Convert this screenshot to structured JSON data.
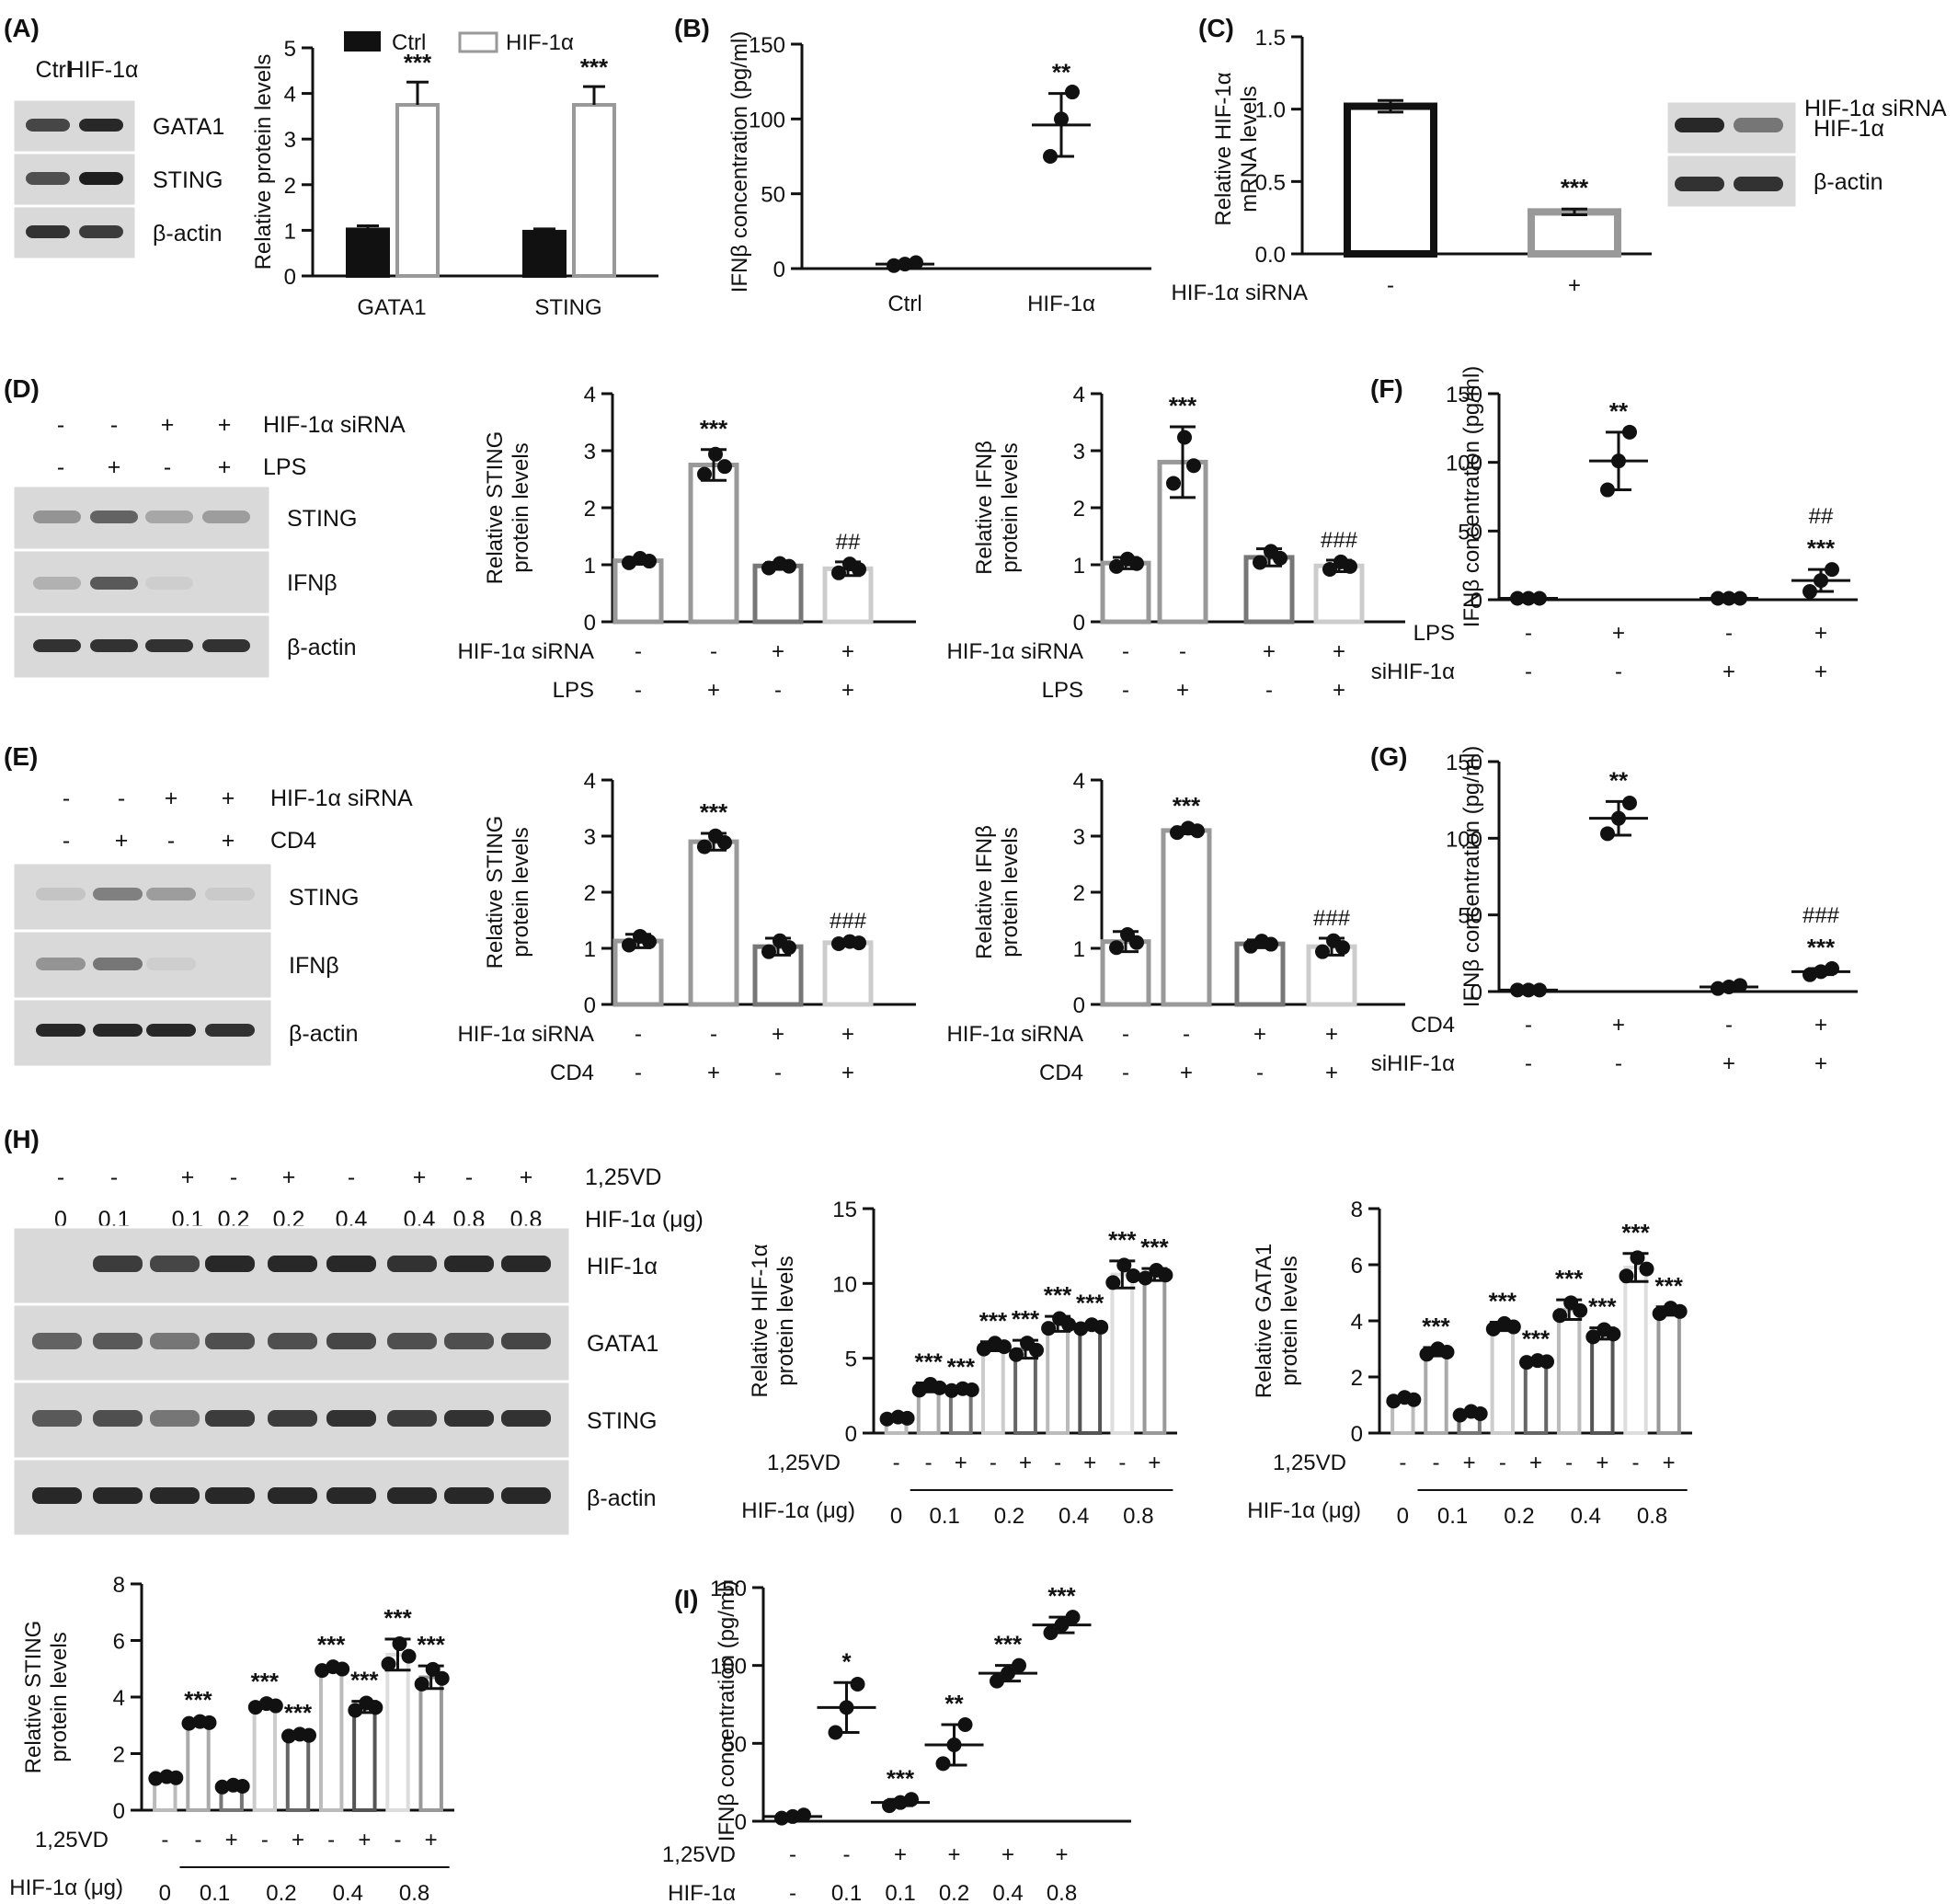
{
  "panels": [
    {
      "id": "A",
      "label": "(A)"
    },
    {
      "id": "B",
      "label": "(B)"
    },
    {
      "id": "C",
      "label": "(C)"
    },
    {
      "id": "D",
      "label": "(D)"
    },
    {
      "id": "E",
      "label": "(E)"
    },
    {
      "id": "F",
      "label": "(F)"
    },
    {
      "id": "G",
      "label": "(G)"
    },
    {
      "id": "H",
      "label": "(H)"
    },
    {
      "id": "I",
      "label": "(I)"
    }
  ],
  "blots": {
    "A": {
      "lanes": [
        "Ctrl",
        "HIF-1α"
      ],
      "bands": [
        "GATA1",
        "STING",
        "β-actin"
      ]
    },
    "C": {
      "lanes": [
        "-",
        "+"
      ],
      "treatment": "HIF-1α siRNA",
      "bands": [
        "HIF-1α",
        "β-actin"
      ]
    },
    "D": {
      "rows": [
        {
          "label": "HIF-1α siRNA",
          "values": [
            "-",
            "-",
            "+",
            "+"
          ]
        },
        {
          "label": "LPS",
          "values": [
            "-",
            "+",
            "-",
            "+"
          ]
        }
      ],
      "bands": [
        "STING",
        "IFNβ",
        "β-actin"
      ]
    },
    "E": {
      "rows": [
        {
          "label": "HIF-1α siRNA",
          "values": [
            "-",
            "-",
            "+",
            "+"
          ]
        },
        {
          "label": "CD4",
          "values": [
            "-",
            "+",
            "-",
            "+"
          ]
        }
      ],
      "bands": [
        "STING",
        "IFNβ",
        "β-actin"
      ]
    },
    "H": {
      "rows": [
        {
          "label": "1,25VD",
          "values": [
            "-",
            "-",
            "+",
            "-",
            "+",
            "-",
            "+",
            "-",
            "+"
          ]
        },
        {
          "label": "HIF-1α (μg)",
          "values": [
            "0",
            "0.1",
            "0.1",
            "0.2",
            "0.2",
            "0.4",
            "0.4",
            "0.8",
            "0.8"
          ]
        }
      ],
      "bands": [
        "HIF-1α",
        "GATA1",
        "STING",
        "β-actin"
      ]
    }
  },
  "chart_data": [
    {
      "panel": "A",
      "type": "bar",
      "categories": [
        "GATA1",
        "STING"
      ],
      "series": [
        {
          "name": "Ctrl",
          "values": [
            1.02,
            0.97
          ],
          "errors": [
            0.08,
            0.06
          ],
          "color": "#111111"
        },
        {
          "name": "HIF-1α",
          "values": [
            3.75,
            3.75
          ],
          "errors": [
            0.5,
            0.4
          ],
          "color": "#ffffff"
        }
      ],
      "ylabel": "Relative protein levels",
      "ylim": [
        0,
        5
      ],
      "yticks": [
        0,
        1,
        2,
        3,
        4,
        5
      ],
      "significance": [
        "***",
        "***"
      ],
      "legend": "top"
    },
    {
      "panel": "B",
      "type": "scatter",
      "categories": [
        "Ctrl",
        "HIF-1α"
      ],
      "means": [
        3,
        96
      ],
      "sd": [
        2,
        21
      ],
      "points": [
        [
          2,
          3,
          4
        ],
        [
          75,
          100,
          118
        ]
      ],
      "ylabel": "IFNβ concentration (pg/ml)",
      "ylim": [
        0,
        150
      ],
      "yticks": [
        0,
        50,
        100,
        150
      ],
      "significance": [
        "",
        "**"
      ]
    },
    {
      "panel": "C",
      "type": "bar",
      "categories": [
        "-",
        "+"
      ],
      "values": [
        1.02,
        0.29
      ],
      "errors": [
        0.04,
        0.02
      ],
      "xlabel": "HIF-1α siRNA",
      "ylabel": "Relative HIF-1α mRNA levels",
      "ylim": [
        0,
        1.5
      ],
      "yticks": [
        "0.0",
        "0.5",
        "1.0",
        "1.5"
      ],
      "significance": [
        "",
        "***"
      ]
    },
    {
      "panel": "D1",
      "type": "bar",
      "rows": [
        {
          "label": "HIF-1α siRNA",
          "values": [
            "-",
            "-",
            "+",
            "+"
          ]
        },
        {
          "label": "LPS",
          "values": [
            "-",
            "+",
            "-",
            "+"
          ]
        }
      ],
      "values": [
        1.07,
        2.75,
        0.98,
        0.93
      ],
      "errors": [
        0.06,
        0.27,
        0.06,
        0.12
      ],
      "ylabel": "Relative STING protein levels",
      "ylim": [
        0,
        4
      ],
      "yticks": [
        0,
        1,
        2,
        3,
        4
      ],
      "significance": [
        "",
        "***",
        "",
        "##"
      ]
    },
    {
      "panel": "D2",
      "type": "bar",
      "rows": [
        {
          "label": "HIF-1α siRNA",
          "values": [
            "-",
            "-",
            "+",
            "+"
          ]
        },
        {
          "label": "LPS",
          "values": [
            "-",
            "+",
            "-",
            "+"
          ]
        }
      ],
      "values": [
        1.03,
        2.8,
        1.13,
        0.98
      ],
      "errors": [
        0.1,
        0.62,
        0.15,
        0.1
      ],
      "ylabel": "Relative IFNβ protein levels",
      "ylim": [
        0,
        4
      ],
      "yticks": [
        0,
        1,
        2,
        3,
        4
      ],
      "significance": [
        "",
        "***",
        "",
        "###"
      ]
    },
    {
      "panel": "E1",
      "type": "bar",
      "rows": [
        {
          "label": "HIF-1α siRNA",
          "values": [
            "-",
            "-",
            "+",
            "+"
          ]
        },
        {
          "label": "CD4",
          "values": [
            "-",
            "+",
            "-",
            "+"
          ]
        }
      ],
      "values": [
        1.13,
        2.9,
        1.03,
        1.1
      ],
      "errors": [
        0.12,
        0.15,
        0.15,
        0.03
      ],
      "ylabel": "Relative STING protein levels",
      "ylim": [
        0,
        4
      ],
      "yticks": [
        0,
        1,
        2,
        3,
        4
      ],
      "significance": [
        "",
        "***",
        "",
        "###"
      ]
    },
    {
      "panel": "E2",
      "type": "bar",
      "rows": [
        {
          "label": "HIF-1α siRNA",
          "values": [
            "-",
            "-",
            "+",
            "+"
          ]
        },
        {
          "label": "CD4",
          "values": [
            "-",
            "+",
            "-",
            "+"
          ]
        }
      ],
      "values": [
        1.12,
        3.1,
        1.08,
        1.03
      ],
      "errors": [
        0.18,
        0.06,
        0.07,
        0.15
      ],
      "ylabel": "Relative IFNβ protein levels",
      "ylim": [
        0,
        4
      ],
      "yticks": [
        0,
        1,
        2,
        3,
        4
      ],
      "significance": [
        "",
        "***",
        "",
        "###"
      ]
    },
    {
      "panel": "F",
      "type": "scatter",
      "rows": [
        {
          "label": "LPS",
          "values": [
            "-",
            "+",
            "-",
            "+"
          ]
        },
        {
          "label": "siHIF-1α",
          "values": [
            "-",
            "-",
            "+",
            "+"
          ]
        }
      ],
      "means": [
        1,
        101,
        1,
        14
      ],
      "sd": [
        0.5,
        21,
        0.5,
        8
      ],
      "points": [
        [
          1,
          1,
          1
        ],
        [
          80,
          101,
          122
        ],
        [
          1,
          1,
          1
        ],
        [
          6,
          14,
          22
        ]
      ],
      "ylabel": "IFNβ concentration (pg/ml)",
      "ylim": [
        0,
        150
      ],
      "yticks": [
        0,
        50,
        100,
        150
      ],
      "significance": [
        "",
        "**",
        "",
        "***"
      ],
      "significance2": [
        "",
        "",
        "",
        "##"
      ]
    },
    {
      "panel": "G",
      "type": "scatter",
      "rows": [
        {
          "label": "CD4",
          "values": [
            "-",
            "+",
            "-",
            "+"
          ]
        },
        {
          "label": "siHIF-1α",
          "values": [
            "-",
            "-",
            "+",
            "+"
          ]
        }
      ],
      "means": [
        1,
        113,
        3,
        13
      ],
      "sd": [
        0.5,
        11,
        1,
        2
      ],
      "points": [
        [
          1,
          1,
          1
        ],
        [
          103,
          113,
          123
        ],
        [
          2,
          3,
          4
        ],
        [
          11,
          13,
          15
        ]
      ],
      "ylabel": "IFNβ concentration (pg/ml)",
      "ylim": [
        0,
        150
      ],
      "yticks": [
        0,
        50,
        100,
        150
      ],
      "significance": [
        "",
        "**",
        "",
        "***"
      ],
      "significance2": [
        "",
        "",
        "",
        "###"
      ]
    },
    {
      "panel": "H1",
      "type": "bar",
      "vd": [
        "-",
        "-",
        "+",
        "-",
        "+",
        "-",
        "+",
        "-",
        "+"
      ],
      "groups": [
        "0",
        "0.1",
        "0.2",
        "0.4",
        "0.8"
      ],
      "group_row_label": "HIF-1α (μg)",
      "values": [
        1.0,
        3.05,
        2.9,
        5.8,
        5.6,
        7.3,
        7.1,
        10.6,
        10.6
      ],
      "errors": [
        0.1,
        0.3,
        0.1,
        0.3,
        0.6,
        0.5,
        0.2,
        0.9,
        0.4
      ],
      "ylabel": "Relative HIF-1α protein levels",
      "ylim": [
        0,
        15
      ],
      "yticks": [
        0,
        5,
        10,
        15
      ],
      "significance": [
        "",
        "***",
        "***",
        "***",
        "***",
        "***",
        "***",
        "***",
        "***"
      ]
    },
    {
      "panel": "H2",
      "type": "bar",
      "vd": [
        "-",
        "-",
        "+",
        "-",
        "+",
        "-",
        "+",
        "-",
        "+"
      ],
      "groups": [
        "0",
        "0.1",
        "0.2",
        "0.4",
        "0.8"
      ],
      "group_row_label": "HIF-1α (μg)",
      "values": [
        1.2,
        2.9,
        0.7,
        3.8,
        2.55,
        4.4,
        3.55,
        5.9,
        4.35
      ],
      "errors": [
        0.1,
        0.15,
        0.1,
        0.15,
        0.05,
        0.35,
        0.2,
        0.5,
        0.15
      ],
      "ylabel": "Relative GATA1 protein levels",
      "ylim": [
        0,
        8
      ],
      "yticks": [
        0,
        2,
        4,
        6,
        8
      ],
      "significance": [
        "",
        "***",
        "",
        "***",
        "***",
        "***",
        "***",
        "***",
        "***"
      ]
    },
    {
      "panel": "H3",
      "type": "bar",
      "vd": [
        "-",
        "-",
        "+",
        "-",
        "+",
        "-",
        "+",
        "-",
        "+"
      ],
      "groups": [
        "0",
        "0.1",
        "0.2",
        "0.4",
        "0.8"
      ],
      "group_row_label": "HIF-1α (μg)",
      "values": [
        1.15,
        3.1,
        0.85,
        3.7,
        2.65,
        5.0,
        3.65,
        5.5,
        4.7
      ],
      "errors": [
        0.05,
        0.05,
        0.05,
        0.1,
        0.05,
        0.1,
        0.2,
        0.55,
        0.4
      ],
      "ylabel": "Relative STING protein levels",
      "ylim": [
        0,
        8
      ],
      "yticks": [
        0,
        2,
        4,
        6,
        8
      ],
      "significance": [
        "",
        "***",
        "",
        "***",
        "***",
        "***",
        "***",
        "***",
        "***"
      ]
    },
    {
      "panel": "I",
      "type": "scatter",
      "rows": [
        {
          "label": "1,25VD",
          "values": [
            "-",
            "-",
            "+",
            "+",
            "+",
            "+"
          ]
        },
        {
          "label": "HIF-1α",
          "values": [
            "-",
            "0.1",
            "0.1",
            "0.2",
            "0.4",
            "0.8"
          ]
        }
      ],
      "means": [
        3,
        73,
        12,
        49,
        95,
        126
      ],
      "sd": [
        1,
        16,
        2,
        13,
        5,
        5
      ],
      "points": [
        [
          2,
          3,
          4
        ],
        [
          57,
          73,
          88
        ],
        [
          10,
          12,
          14
        ],
        [
          37,
          49,
          62
        ],
        [
          90,
          95,
          100
        ],
        [
          121,
          126,
          131
        ]
      ],
      "ylabel": "IFNβ concentration (pg/ml)",
      "ylim": [
        0,
        150
      ],
      "yticks": [
        0,
        50,
        100,
        150
      ],
      "significance": [
        "",
        "*",
        "***",
        "**",
        "***",
        "***"
      ]
    }
  ]
}
